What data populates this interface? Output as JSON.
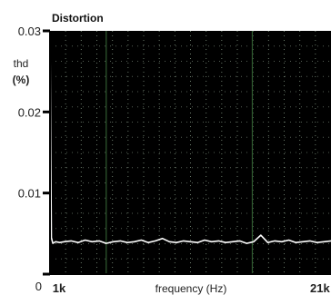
{
  "chart_data": {
    "type": "line",
    "title": "Distortion",
    "xlabel": "frequency (Hz)",
    "ylabel": [
      "thd",
      "(%)"
    ],
    "xlim": [
      1000,
      21000
    ],
    "ylim": [
      0,
      0.03
    ],
    "x_tick_labels": [
      "1k",
      "21k"
    ],
    "y_ticks": [
      0,
      0.01,
      0.02,
      0.03
    ],
    "y_tick_labels": [
      "0",
      "0.01",
      "0.02",
      "0.03"
    ],
    "grid": true,
    "background": "#000000",
    "series": [
      {
        "color": "#ffffff",
        "x": [
          1000,
          1050,
          1100,
          1200,
          1400,
          1700,
          2000,
          2500,
          3000,
          3500,
          4000,
          4500,
          5000,
          5500,
          6000,
          6500,
          7000,
          7500,
          8000,
          8500,
          9000,
          9500,
          10000,
          10500,
          11000,
          11500,
          12000,
          12500,
          13000,
          13500,
          14000,
          14500,
          15000,
          15500,
          16000,
          16500,
          17000,
          17500,
          18000,
          18500,
          19000,
          19500,
          20000,
          20500,
          21000
        ],
        "y": [
          0.03,
          0.015,
          0.0045,
          0.0038,
          0.004,
          0.0039,
          0.004,
          0.0041,
          0.0039,
          0.0042,
          0.004,
          0.0041,
          0.0038,
          0.004,
          0.0041,
          0.0039,
          0.004,
          0.0042,
          0.0039,
          0.0041,
          0.0044,
          0.004,
          0.0039,
          0.0041,
          0.004,
          0.0039,
          0.0042,
          0.004,
          0.0041,
          0.0039,
          0.004,
          0.0041,
          0.0038,
          0.004,
          0.0048,
          0.0039,
          0.0041,
          0.004,
          0.0042,
          0.0039,
          0.004,
          0.0041,
          0.0039,
          0.004,
          0.0041
        ]
      }
    ]
  }
}
